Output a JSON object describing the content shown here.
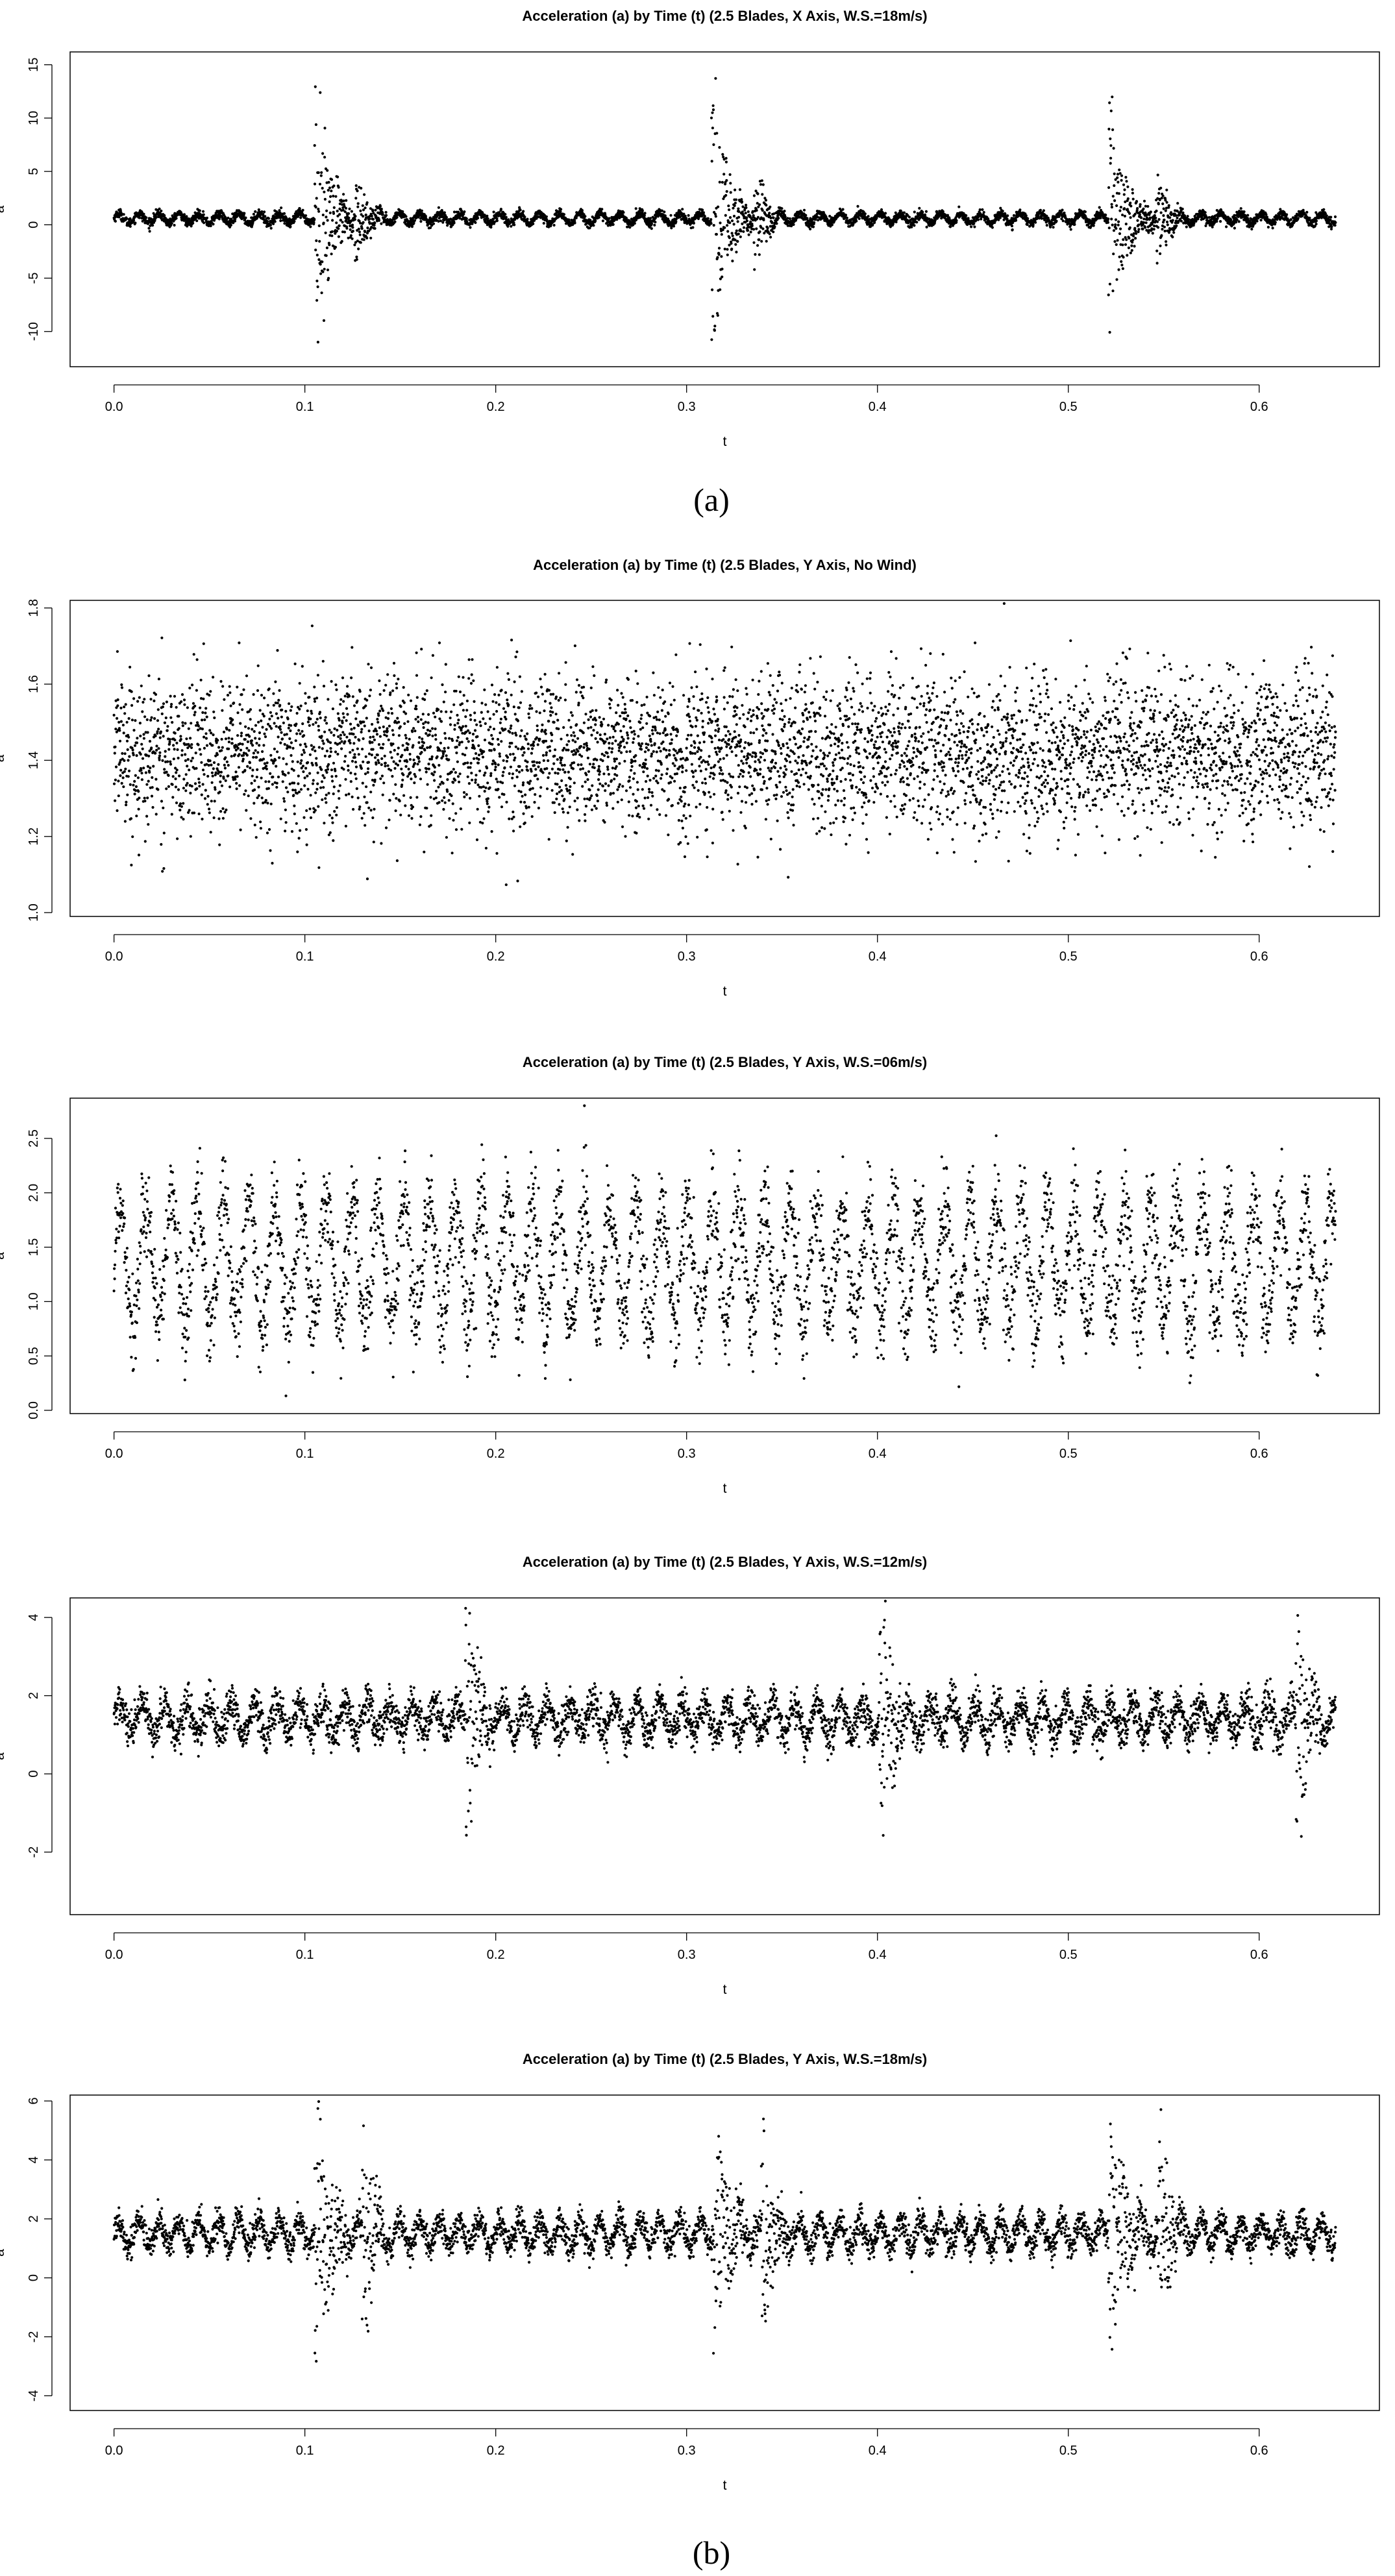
{
  "panel_labels": [
    "(a)",
    "(b)"
  ],
  "chart_data": [
    {
      "type": "scatter",
      "panel": "(a)",
      "title": "Acceleration (a) by Time (t) (2.5 Blades, X Axis, W.S.=18m/s)",
      "xlabel": "t",
      "ylabel": "a",
      "xlim": [
        -0.023,
        0.663
      ],
      "ylim": [
        -13.3,
        16.2
      ],
      "xticks": [
        0.0,
        0.1,
        0.2,
        0.3,
        0.4,
        0.5,
        0.6
      ],
      "xtick_labels": [
        "0.0",
        "0.1",
        "0.2",
        "0.3",
        "0.4",
        "0.5",
        "0.6"
      ],
      "yticks": [
        -10,
        -5,
        0,
        5,
        10,
        15
      ],
      "ytick_labels": [
        "-10",
        "-5",
        "0",
        "5",
        "10",
        "15"
      ],
      "signal": {
        "t_range": [
          0.0,
          0.64
        ],
        "n_points": 5000,
        "baseline": 0.6,
        "oscillation_period": 0.0105,
        "oscillation_amplitude": 0.45,
        "noise": 0.22,
        "events": [
          {
            "t": 0.107,
            "duration": 0.03,
            "amplitude": 14.8,
            "decay": 0.008
          },
          {
            "t": 0.128,
            "duration": 0.015,
            "amplitude": 5.0,
            "decay": 0.006
          },
          {
            "t": 0.315,
            "duration": 0.028,
            "amplitude": 14.2,
            "decay": 0.008
          },
          {
            "t": 0.337,
            "duration": 0.014,
            "amplitude": 4.5,
            "decay": 0.006
          },
          {
            "t": 0.523,
            "duration": 0.03,
            "amplitude": 12.5,
            "decay": 0.008
          },
          {
            "t": 0.548,
            "duration": 0.014,
            "amplitude": 4.8,
            "decay": 0.006
          }
        ]
      },
      "grid": false,
      "legend": "none"
    },
    {
      "type": "scatter",
      "panel": "(b)",
      "title": "Acceleration (a) by Time (t) (2.5 Blades, Y Axis, No Wind)",
      "xlabel": "t",
      "ylabel": "a",
      "xlim": [
        -0.023,
        0.663
      ],
      "ylim": [
        0.99,
        1.82
      ],
      "xticks": [
        0.0,
        0.1,
        0.2,
        0.3,
        0.4,
        0.5,
        0.6
      ],
      "xtick_labels": [
        "0.0",
        "0.1",
        "0.2",
        "0.3",
        "0.4",
        "0.5",
        "0.6"
      ],
      "yticks": [
        1.0,
        1.2,
        1.4,
        1.6,
        1.8
      ],
      "ytick_labels": [
        "1.0",
        "1.2",
        "1.4",
        "1.6",
        "1.8"
      ],
      "signal": {
        "t_range": [
          0.0,
          0.64
        ],
        "n_points": 5000,
        "baseline": 1.42,
        "oscillation_period": 0.02,
        "oscillation_amplitude": 0.02,
        "noise": 0.1,
        "events": []
      },
      "grid": false,
      "legend": "none"
    },
    {
      "type": "scatter",
      "panel": "(b)",
      "title": "Acceleration (a) by Time (t) (2.5 Blades, Y Axis, W.S.=06m/s)",
      "xlabel": "t",
      "ylabel": "a",
      "xlim": [
        -0.023,
        0.663
      ],
      "ylim": [
        -0.03,
        2.87
      ],
      "xticks": [
        0.0,
        0.1,
        0.2,
        0.3,
        0.4,
        0.5,
        0.6
      ],
      "xtick_labels": [
        "0.0",
        "0.1",
        "0.2",
        "0.3",
        "0.4",
        "0.5",
        "0.6"
      ],
      "yticks": [
        0.0,
        0.5,
        1.0,
        1.5,
        2.0,
        2.5
      ],
      "ytick_labels": [
        "0.0",
        "0.5",
        "1.0",
        "1.5",
        "2.0",
        "2.5"
      ],
      "signal": {
        "t_range": [
          0.0,
          0.64
        ],
        "n_points": 4000,
        "baseline": 1.35,
        "oscillation_period": 0.0135,
        "oscillation_amplitude": 0.55,
        "noise": 0.22,
        "events": []
      },
      "grid": false,
      "legend": "none"
    },
    {
      "type": "scatter",
      "panel": "(b)",
      "title": "Acceleration (a) by Time (t) (2.5 Blades, Y Axis, W.S.=12m/s)",
      "xlabel": "t",
      "ylabel": "a",
      "xlim": [
        -0.023,
        0.663
      ],
      "ylim": [
        -3.6,
        4.5
      ],
      "xticks": [
        0.0,
        0.1,
        0.2,
        0.3,
        0.4,
        0.5,
        0.6
      ],
      "xtick_labels": [
        "0.0",
        "0.1",
        "0.2",
        "0.3",
        "0.4",
        "0.5",
        "0.6"
      ],
      "yticks": [
        -2,
        0,
        2,
        4
      ],
      "ytick_labels": [
        "-2",
        "0",
        "2",
        "4"
      ],
      "signal": {
        "t_range": [
          0.0,
          0.64
        ],
        "n_points": 4500,
        "baseline": 1.4,
        "oscillation_period": 0.0118,
        "oscillation_amplitude": 0.4,
        "noise": 0.25,
        "events": [
          {
            "t": 0.186,
            "duration": 0.012,
            "amplitude": 3.8,
            "decay": 0.006
          },
          {
            "t": 0.403,
            "duration": 0.012,
            "amplitude": 4.2,
            "decay": 0.006
          },
          {
            "t": 0.621,
            "duration": 0.012,
            "amplitude": 4.0,
            "decay": 0.006
          }
        ]
      },
      "grid": false,
      "legend": "none"
    },
    {
      "type": "scatter",
      "panel": "(b)",
      "title": "Acceleration (a) by Time (t) (2.5 Blades, Y Axis, W.S.=18m/s)",
      "xlabel": "t",
      "ylabel": "a",
      "xlim": [
        -0.023,
        0.663
      ],
      "ylim": [
        -4.5,
        6.2
      ],
      "xticks": [
        0.0,
        0.1,
        0.2,
        0.3,
        0.4,
        0.5,
        0.6
      ],
      "xtick_labels": [
        "0.0",
        "0.1",
        "0.2",
        "0.3",
        "0.4",
        "0.5",
        "0.6"
      ],
      "yticks": [
        -4,
        -2,
        0,
        2,
        4,
        6
      ],
      "ytick_labels": [
        "-4",
        "-2",
        "0",
        "2",
        "4",
        "6"
      ],
      "signal": {
        "t_range": [
          0.0,
          0.64
        ],
        "n_points": 4500,
        "baseline": 1.5,
        "oscillation_period": 0.0105,
        "oscillation_amplitude": 0.45,
        "noise": 0.25,
        "events": [
          {
            "t": 0.107,
            "duration": 0.03,
            "amplitude": 5.6,
            "decay": 0.008
          },
          {
            "t": 0.132,
            "duration": 0.015,
            "amplitude": 4.5,
            "decay": 0.006
          },
          {
            "t": 0.316,
            "duration": 0.028,
            "amplitude": 5.0,
            "decay": 0.008
          },
          {
            "t": 0.341,
            "duration": 0.015,
            "amplitude": 4.0,
            "decay": 0.006
          },
          {
            "t": 0.523,
            "duration": 0.03,
            "amplitude": 5.0,
            "decay": 0.008
          },
          {
            "t": 0.549,
            "duration": 0.015,
            "amplitude": 4.0,
            "decay": 0.006
          }
        ]
      },
      "grid": false,
      "legend": "none"
    }
  ]
}
